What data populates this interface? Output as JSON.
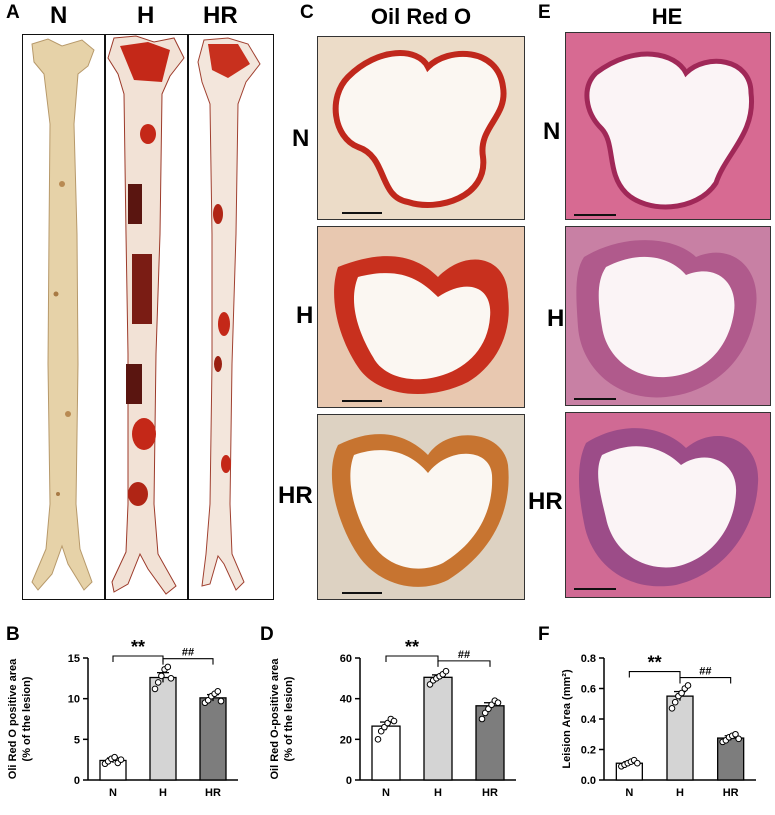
{
  "panel_letters": {
    "a": "A",
    "b": "B",
    "c": "C",
    "d": "D",
    "e": "E",
    "f": "F"
  },
  "aorta_labels": [
    "N",
    "H",
    "HR"
  ],
  "titles": {
    "oil_red_o": "Oil Red O",
    "he": "HE"
  },
  "row_labels": [
    "N",
    "H",
    "HR"
  ],
  "colors": {
    "bar_n": "#ffffff",
    "bar_h": "#d4d4d4",
    "bar_hr": "#7d7d7d",
    "oil_red": "#c0281c",
    "he_pink": "#c84a7a"
  },
  "chart_data": [
    {
      "panel": "B",
      "type": "bar",
      "categories": [
        "N",
        "H",
        "HR"
      ],
      "values": [
        2.4,
        12.6,
        10.1
      ],
      "errors": [
        0.3,
        0.6,
        0.4
      ],
      "points": [
        [
          2.0,
          2.3,
          2.6,
          2.8,
          2.1,
          2.5
        ],
        [
          11.2,
          12.0,
          12.8,
          13.6,
          13.9,
          12.5
        ],
        [
          9.5,
          9.8,
          10.3,
          10.6,
          10.9,
          9.7
        ]
      ],
      "ylabel_lines": [
        "Oli Red O positive area",
        "(% of the lesion)"
      ],
      "ylim": [
        0,
        15
      ],
      "yticks": [
        0,
        5,
        10,
        15
      ],
      "significance": [
        {
          "from": "N",
          "to": "H",
          "label": "**"
        },
        {
          "from": "H",
          "to": "HR",
          "label": "##"
        }
      ]
    },
    {
      "panel": "D",
      "type": "bar",
      "categories": [
        "N",
        "H",
        "HR"
      ],
      "values": [
        26.5,
        50.5,
        36.5
      ],
      "errors": [
        2.0,
        1.2,
        1.5
      ],
      "points": [
        [
          20.0,
          24.0,
          26.0,
          28.0,
          30.0,
          29.0
        ],
        [
          47.0,
          49.0,
          50.0,
          51.0,
          52.0,
          53.5
        ],
        [
          30.0,
          33.0,
          35.0,
          37.0,
          39.0,
          38.0
        ]
      ],
      "ylabel_lines": [
        "Oil Red O-positive area",
        "(% of the lesion)"
      ],
      "ylim": [
        0,
        60
      ],
      "yticks": [
        0,
        20,
        40,
        60
      ],
      "significance": [
        {
          "from": "N",
          "to": "H",
          "label": "**"
        },
        {
          "from": "H",
          "to": "HR",
          "label": "##"
        }
      ]
    },
    {
      "panel": "F",
      "type": "bar",
      "categories": [
        "N",
        "H",
        "HR"
      ],
      "values": [
        0.11,
        0.55,
        0.275
      ],
      "errors": [
        0.01,
        0.03,
        0.015
      ],
      "points": [
        [
          0.09,
          0.1,
          0.11,
          0.12,
          0.13,
          0.11
        ],
        [
          0.47,
          0.51,
          0.55,
          0.57,
          0.6,
          0.62
        ],
        [
          0.25,
          0.26,
          0.28,
          0.29,
          0.3,
          0.27
        ]
      ],
      "ylabel_lines": [
        "Leision Area (mm²)"
      ],
      "ylim": [
        0,
        0.8
      ],
      "yticks": [
        0.0,
        0.2,
        0.4,
        0.6,
        0.8
      ],
      "significance": [
        {
          "from": "N",
          "to": "H",
          "label": "**"
        },
        {
          "from": "H",
          "to": "HR",
          "label": "##"
        }
      ]
    }
  ]
}
